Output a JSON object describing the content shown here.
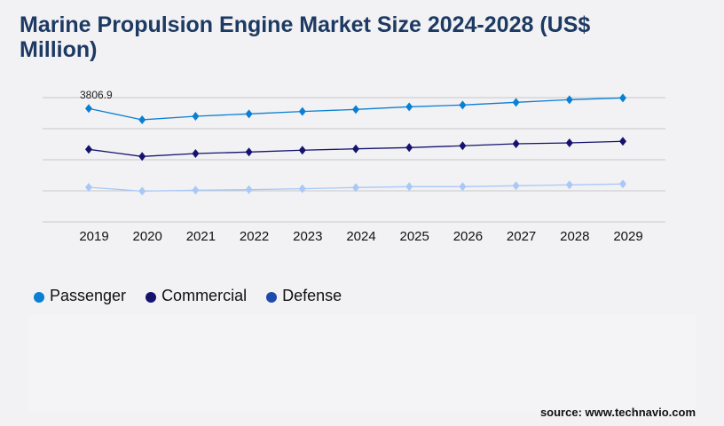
{
  "title": "Marine Propulsion Engine Market Size 2024-2028 (US$ Million)",
  "source": "source: www.technavio.com",
  "chart_data": {
    "type": "line",
    "title": "Marine Propulsion Engine Market Size 2024-2028 (US$ Million)",
    "categories": [
      "2019",
      "2020",
      "2021",
      "2022",
      "2023",
      "2024",
      "2025",
      "2026",
      "2027",
      "2028",
      "2029"
    ],
    "ylim": [
      0,
      4173
    ],
    "grid": true,
    "legend_position": "bottom-left",
    "annotation": "3806.9",
    "series": [
      {
        "name": "Passenger",
        "color": "#0a7fd4",
        "legend_color": "#0a7fd4",
        "values": [
          3806.9,
          3429,
          3548,
          3627,
          3707,
          3776,
          3865,
          3925,
          4014,
          4104,
          4163
        ]
      },
      {
        "name": "Commercial",
        "color": "#15136e",
        "legend_color": "#15136e",
        "values": [
          2435,
          2197,
          2295,
          2346,
          2406,
          2453,
          2495,
          2555,
          2623,
          2653,
          2704
        ]
      },
      {
        "name": "Defense",
        "color": "#a8c8f8",
        "legend_color": "#1e4aad",
        "values": [
          1163,
          1033,
          1064,
          1083,
          1113,
          1153,
          1183,
          1183,
          1213,
          1243,
          1273
        ]
      }
    ]
  }
}
